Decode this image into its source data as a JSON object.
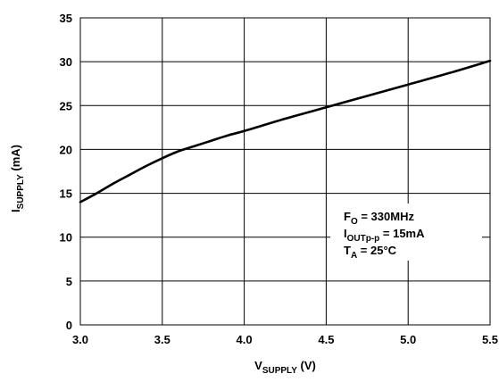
{
  "chart_data": {
    "type": "line",
    "title": "",
    "xlabel": {
      "main": "V",
      "sub": "SUPPLY",
      "suffix": " (V)"
    },
    "ylabel": {
      "main": "I",
      "sub": "SUPPLY",
      "suffix": " (mA)"
    },
    "xlim": [
      3.0,
      5.5
    ],
    "ylim": [
      0,
      35
    ],
    "x_ticks": [
      "3.0",
      "3.5",
      "4.0",
      "4.5",
      "5.0",
      "5.5"
    ],
    "y_ticks": [
      "0",
      "5",
      "10",
      "15",
      "20",
      "25",
      "30",
      "35"
    ],
    "grid": true,
    "series": [
      {
        "x": [
          3.0,
          3.1,
          3.2,
          3.3,
          3.4,
          3.5,
          3.6,
          3.7,
          3.8,
          3.9,
          4.0,
          4.25,
          4.5,
          4.75,
          5.0,
          5.25,
          5.5
        ],
        "values": [
          14.0,
          15.0,
          16.1,
          17.1,
          18.1,
          19.0,
          19.8,
          20.4,
          21.0,
          21.6,
          22.1,
          23.5,
          24.8,
          26.1,
          27.4,
          28.7,
          30.1
        ]
      }
    ],
    "annotation": {
      "line1": {
        "main": "F",
        "sub": "O",
        "suffix": " = 330MHz"
      },
      "line2": {
        "main": "I",
        "sub": "OUTp-p",
        "suffix": " = 15mA"
      },
      "line3": {
        "main": "T",
        "sub": "A",
        "suffix": " = 25°C"
      }
    }
  }
}
